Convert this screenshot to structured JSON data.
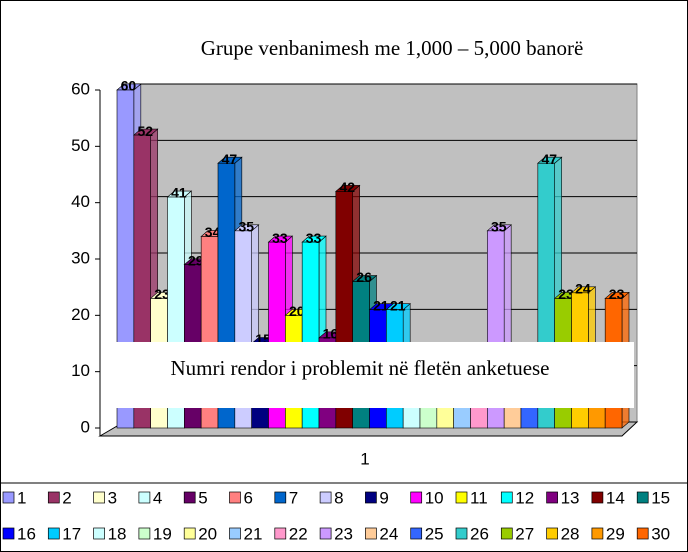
{
  "chart_data": {
    "type": "bar",
    "title": "Grupe venbanimesh me 1,000 – 5,000 banorë",
    "xlabel": "Numri rendor i problemit në fletën anketuese",
    "categories": [
      "1"
    ],
    "ylim": [
      0,
      60
    ],
    "yticks": [
      0,
      10,
      20,
      30,
      40,
      50,
      60
    ],
    "grid": true,
    "legend": "bottom",
    "series": [
      {
        "name": "1",
        "color": "#9999FF",
        "values": [
          60
        ]
      },
      {
        "name": "2",
        "color": "#993366",
        "values": [
          52
        ]
      },
      {
        "name": "3",
        "color": "#FFFFCC",
        "values": [
          23
        ]
      },
      {
        "name": "4",
        "color": "#CCFFFF",
        "values": [
          41
        ]
      },
      {
        "name": "5",
        "color": "#660066",
        "values": [
          29
        ]
      },
      {
        "name": "6",
        "color": "#FF8080",
        "values": [
          34
        ]
      },
      {
        "name": "7",
        "color": "#0066CC",
        "values": [
          47
        ]
      },
      {
        "name": "8",
        "color": "#CCCCFF",
        "values": [
          35
        ]
      },
      {
        "name": "9",
        "color": "#000080",
        "values": [
          15
        ]
      },
      {
        "name": "10",
        "color": "#FF00FF",
        "values": [
          33
        ]
      },
      {
        "name": "11",
        "color": "#FFFF00",
        "values": [
          20
        ]
      },
      {
        "name": "12",
        "color": "#00FFFF",
        "values": [
          33
        ]
      },
      {
        "name": "13",
        "color": "#800080",
        "values": [
          16
        ]
      },
      {
        "name": "14",
        "color": "#800000",
        "values": [
          42
        ]
      },
      {
        "name": "15",
        "color": "#008080",
        "values": [
          26
        ]
      },
      {
        "name": "16",
        "color": "#0000FF",
        "values": [
          21
        ]
      },
      {
        "name": "17",
        "color": "#00CCFF",
        "values": [
          21
        ]
      },
      {
        "name": "18",
        "color": "#CCFFFF",
        "values": [
          8
        ]
      },
      {
        "name": "19",
        "color": "#CCFFCC",
        "values": [
          10
        ]
      },
      {
        "name": "20",
        "color": "#FFFF99",
        "values": [
          9
        ]
      },
      {
        "name": "21",
        "color": "#99CCFF",
        "values": [
          7
        ]
      },
      {
        "name": "22",
        "color": "#FF99CC",
        "values": [
          6
        ]
      },
      {
        "name": "23",
        "color": "#CC99FF",
        "values": [
          35
        ]
      },
      {
        "name": "24",
        "color": "#FFCC99",
        "values": [
          6
        ]
      },
      {
        "name": "25",
        "color": "#3366FF",
        "values": [
          11
        ]
      },
      {
        "name": "26",
        "color": "#33CCCC",
        "values": [
          47
        ]
      },
      {
        "name": "27",
        "color": "#99CC00",
        "values": [
          23
        ]
      },
      {
        "name": "28",
        "color": "#FFCC00",
        "values": [
          24
        ]
      },
      {
        "name": "29",
        "color": "#FF9900",
        "values": [
          5
        ]
      },
      {
        "name": "30",
        "color": "#FF6600",
        "values": [
          23
        ]
      }
    ]
  }
}
